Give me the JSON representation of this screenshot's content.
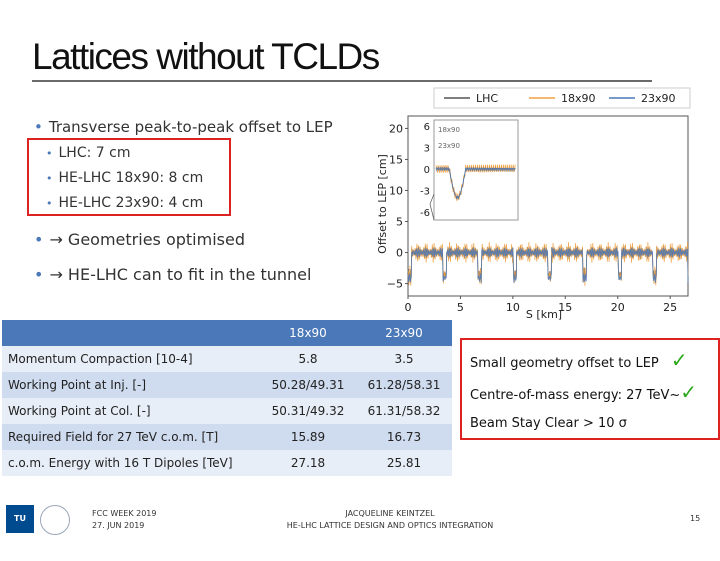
{
  "slide": {
    "title": "Lattices without TCLDs",
    "bullet1": "Transverse peak-to-peak offset to LEP",
    "subbullets": [
      "LHC: 7 cm",
      "HE-LHC 18x90: 8 cm",
      "HE-LHC 23x90: 4 cm"
    ],
    "bullet2": "→ Geometries optimised",
    "bullet3": "→ HE-LHC can to fit in the tunnel"
  },
  "chart_data": {
    "type": "line",
    "series": [
      {
        "name": "LHC",
        "color": "#555555"
      },
      {
        "name": "18x90",
        "color": "#f0a040"
      },
      {
        "name": "23x90",
        "color": "#4a78b8"
      }
    ],
    "xlabel": "S [km]",
    "ylabel": "Offset to LEP [cm]",
    "xticks": [
      "0",
      "5",
      "10",
      "15",
      "20",
      "25"
    ],
    "yticks": [
      "20",
      "15",
      "10",
      "5",
      "0",
      "−5"
    ],
    "xlim": [
      0,
      26.7
    ],
    "ylim": [
      -7,
      22
    ],
    "inset": {
      "yticks": [
        "6",
        "3",
        "0",
        "-3",
        "-6"
      ],
      "labels": [
        "18x90",
        "23x90"
      ]
    }
  },
  "table": {
    "headers": [
      "",
      "18x90",
      "23x90"
    ],
    "rows": [
      [
        "Momentum Compaction [10-4]",
        "5.8",
        "3.5"
      ],
      [
        "Working Point at Inj. [-]",
        "50.28/49.31",
        "61.28/58.31"
      ],
      [
        "Working Point at Col. [-]",
        "50.31/49.32",
        "61.31/58.32"
      ],
      [
        "Required Field for 27 TeV c.o.m. [T]",
        "15.89",
        "16.73"
      ],
      [
        "c.o.m. Energy with 16 T Dipoles [TeV]",
        "27.18",
        "25.81"
      ]
    ]
  },
  "summary": {
    "line1": "Small geometry offset to LEP",
    "line2": "Centre-of-mass energy: 27 TeV",
    "line2_mark": "~",
    "line3": "Beam Stay Clear > 10 σ",
    "check": "✓"
  },
  "footer": {
    "logo": "TU WIEN",
    "event": "FCC WEEK 2019",
    "date": "27. JUN 2019",
    "author": "JACQUELINE KEINTZEL",
    "subtitle": "HE-LHC LATTICE DESIGN AND OPTICS INTEGRATION",
    "page": "15"
  }
}
